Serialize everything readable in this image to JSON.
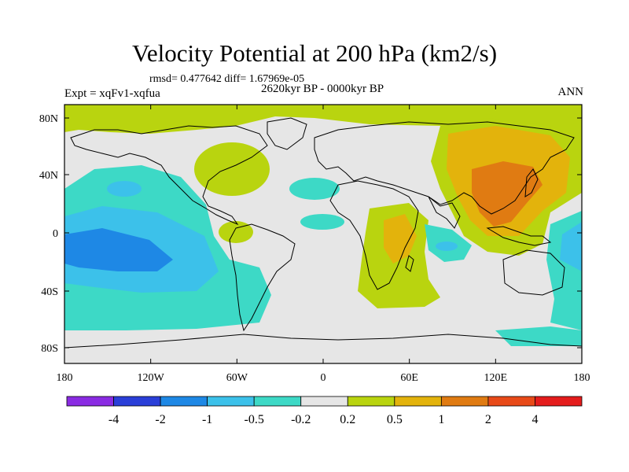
{
  "title": "Velocity Potential at 200 hPa (km2/s)",
  "stats": "rmsd= 0.477642  diff= 1.67969e-05",
  "experiment": "Expt = xqFv1-xqfua",
  "period": "2620kyr BP - 0000kyr BP",
  "season": "ANN",
  "lon_labels": [
    "180",
    "120W",
    "60W",
    "0",
    "60E",
    "120E",
    "180"
  ],
  "lat_labels": [
    "80N",
    "40N",
    "0",
    "40S",
    "80S"
  ],
  "colorbar": {
    "labels": [
      "-4",
      "-2",
      "-1",
      "-0.5",
      "-0.2",
      "0.2",
      "0.5",
      "1",
      "2",
      "4"
    ],
    "colors": [
      "#8a2be2",
      "#2a3fd8",
      "#1e88e5",
      "#3cc1ea",
      "#3dd9c6",
      "#e6e6e6",
      "#b9d40f",
      "#e3b30c",
      "#e07b12",
      "#e84a18",
      "#e41c1c"
    ]
  }
}
